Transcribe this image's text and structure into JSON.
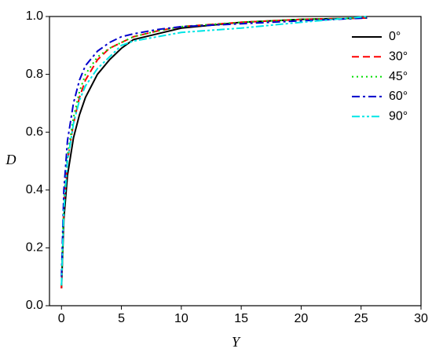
{
  "chart_data": {
    "type": "line",
    "x_label": "Y",
    "y_label": "D",
    "x": [
      0,
      0.2,
      0.5,
      1,
      1.5,
      2,
      3,
      4,
      5,
      6,
      8,
      10,
      15,
      20,
      25.5
    ],
    "series": [
      {
        "name": "0°",
        "color": "#000000",
        "style": "solid",
        "values": [
          0.06,
          0.3,
          0.45,
          0.58,
          0.66,
          0.72,
          0.8,
          0.85,
          0.89,
          0.92,
          0.94,
          0.96,
          0.98,
          0.99,
          0.995
        ]
      },
      {
        "name": "30°",
        "color": "#ff0000",
        "style": "dash",
        "values": [
          0.06,
          0.35,
          0.5,
          0.63,
          0.72,
          0.78,
          0.85,
          0.89,
          0.91,
          0.93,
          0.95,
          0.965,
          0.98,
          0.99,
          0.995
        ]
      },
      {
        "name": "45°",
        "color": "#00dd00",
        "style": "dot",
        "values": [
          0.07,
          0.36,
          0.52,
          0.65,
          0.74,
          0.8,
          0.86,
          0.89,
          0.91,
          0.93,
          0.95,
          0.965,
          0.98,
          0.99,
          0.995
        ]
      },
      {
        "name": "60°",
        "color": "#0000cc",
        "style": "dashdot",
        "values": [
          0.1,
          0.4,
          0.57,
          0.7,
          0.78,
          0.83,
          0.88,
          0.91,
          0.93,
          0.94,
          0.955,
          0.965,
          0.975,
          0.985,
          0.995
        ]
      },
      {
        "name": "90°",
        "color": "#00e5e5",
        "style": "dashdotdot",
        "values": [
          0.07,
          0.33,
          0.5,
          0.63,
          0.71,
          0.76,
          0.82,
          0.86,
          0.9,
          0.915,
          0.93,
          0.945,
          0.96,
          0.98,
          1.0
        ]
      }
    ],
    "xlim": [
      -1,
      30
    ],
    "ylim": [
      0,
      1
    ],
    "xticks": [
      0,
      5,
      10,
      15,
      20,
      25,
      30
    ],
    "yticks": [
      {
        "value": 0,
        "label": "0.0"
      },
      {
        "value": 0.2,
        "label": "0.2"
      },
      {
        "value": 0.4,
        "label": "0.4"
      },
      {
        "value": 0.6,
        "label": "0.6"
      },
      {
        "value": 0.8,
        "label": "0.8"
      },
      {
        "value": 1,
        "label": "1.0"
      }
    ],
    "legend": "top-right",
    "grid": false
  }
}
